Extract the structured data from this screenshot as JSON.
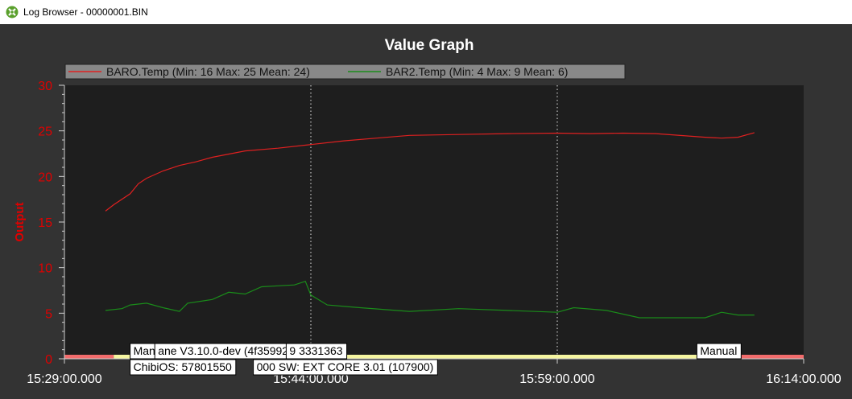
{
  "window": {
    "title": "Log Browser - 00000001.BIN",
    "icon": "app-logo-icon"
  },
  "colors": {
    "background": "#333333",
    "plot_background": "#1e1e1e",
    "axis_label": "#e00000",
    "baro_series": "#e02020",
    "bar2_series": "#1a8c1a",
    "mode_manual": "#f26c6c",
    "mode_other": "#f5f5a0"
  },
  "chart_data": {
    "type": "line",
    "title": "Value Graph",
    "xlabel": "",
    "ylabel": "Output",
    "ylim": [
      0,
      30
    ],
    "yticks": [
      "0",
      "5",
      "10",
      "15",
      "20",
      "25",
      "30"
    ],
    "xlim": [
      "15:29:00.000",
      "16:14:00.000"
    ],
    "xticks": [
      "15:29:00.000",
      "15:44:00.000",
      "15:59:00.000",
      "16:14:00.000"
    ],
    "grid": "vertical dotted at major x ticks",
    "legend_position": "top-left",
    "series": [
      {
        "name": "BARO.Temp",
        "legend_label": "BARO.Temp (Min: 16 Max: 25 Mean: 24)",
        "x": [
          "15:31:30",
          "15:32:00",
          "15:33:00",
          "15:33:30",
          "15:34:00",
          "15:35:00",
          "15:36:00",
          "15:37:00",
          "15:38:00",
          "15:40:00",
          "15:42:00",
          "15:44:00",
          "15:46:00",
          "15:48:00",
          "15:50:00",
          "15:53:00",
          "15:56:00",
          "15:59:00",
          "16:01:00",
          "16:03:00",
          "16:05:00",
          "16:08:00",
          "16:09:00",
          "16:10:00",
          "16:11:00"
        ],
        "y": [
          16.2,
          16.9,
          18.1,
          19.2,
          19.8,
          20.6,
          21.2,
          21.6,
          22.1,
          22.8,
          23.1,
          23.5,
          23.9,
          24.2,
          24.5,
          24.6,
          24.7,
          24.75,
          24.7,
          24.75,
          24.7,
          24.3,
          24.2,
          24.3,
          24.8
        ]
      },
      {
        "name": "BAR2.Temp",
        "legend_label": "BAR2.Temp (Min: 4 Max: 9 Mean: 6)",
        "x": [
          "15:31:30",
          "15:32:30",
          "15:33:00",
          "15:34:00",
          "15:35:00",
          "15:36:00",
          "15:36:30",
          "15:38:00",
          "15:39:00",
          "15:40:00",
          "15:41:00",
          "15:42:00",
          "15:43:00",
          "15:43:40",
          "15:44:00",
          "15:45:00",
          "15:47:00",
          "15:50:00",
          "15:53:00",
          "15:56:00",
          "15:59:00",
          "16:00:00",
          "16:02:00",
          "16:04:00",
          "16:08:00",
          "16:09:00",
          "16:10:00",
          "16:11:00"
        ],
        "y": [
          5.3,
          5.5,
          5.9,
          6.1,
          5.6,
          5.2,
          6.1,
          6.5,
          7.3,
          7.1,
          7.9,
          8.0,
          8.1,
          8.5,
          7.0,
          5.9,
          5.6,
          5.2,
          5.5,
          5.3,
          5.1,
          5.6,
          5.3,
          4.5,
          4.5,
          5.1,
          4.8,
          4.8
        ]
      }
    ],
    "mode_bar": [
      {
        "mode": "Manual",
        "start": "15:29:00",
        "end": "15:29:00",
        "color": "manual"
      },
      {
        "mode": "Manual",
        "start": "15:29:00",
        "end": "15:32:00",
        "color": "manual"
      },
      {
        "mode": "",
        "start": "15:32:00",
        "end": "16:09:00",
        "color": "other"
      },
      {
        "mode": "Manual",
        "start": "16:09:00",
        "end": "16:14:00",
        "color": "manual"
      }
    ],
    "annotations": [
      {
        "row": 1,
        "at": "15:33:00",
        "text": "Manual"
      },
      {
        "row": 1,
        "at": "15:34:30",
        "text": "ane  V3.10.0-dev  (4f359920)"
      },
      {
        "row": 1,
        "at": "15:42:30",
        "text": "9  3331363"
      },
      {
        "row": 2,
        "at": "15:33:00",
        "text": "ChibiOS: 57801550"
      },
      {
        "row": 2,
        "at": "15:40:30",
        "text": "000  SW:  EXT  CORE  3.01  (107900)"
      },
      {
        "row": 1,
        "at": "16:07:30",
        "text": "Manual"
      }
    ]
  }
}
